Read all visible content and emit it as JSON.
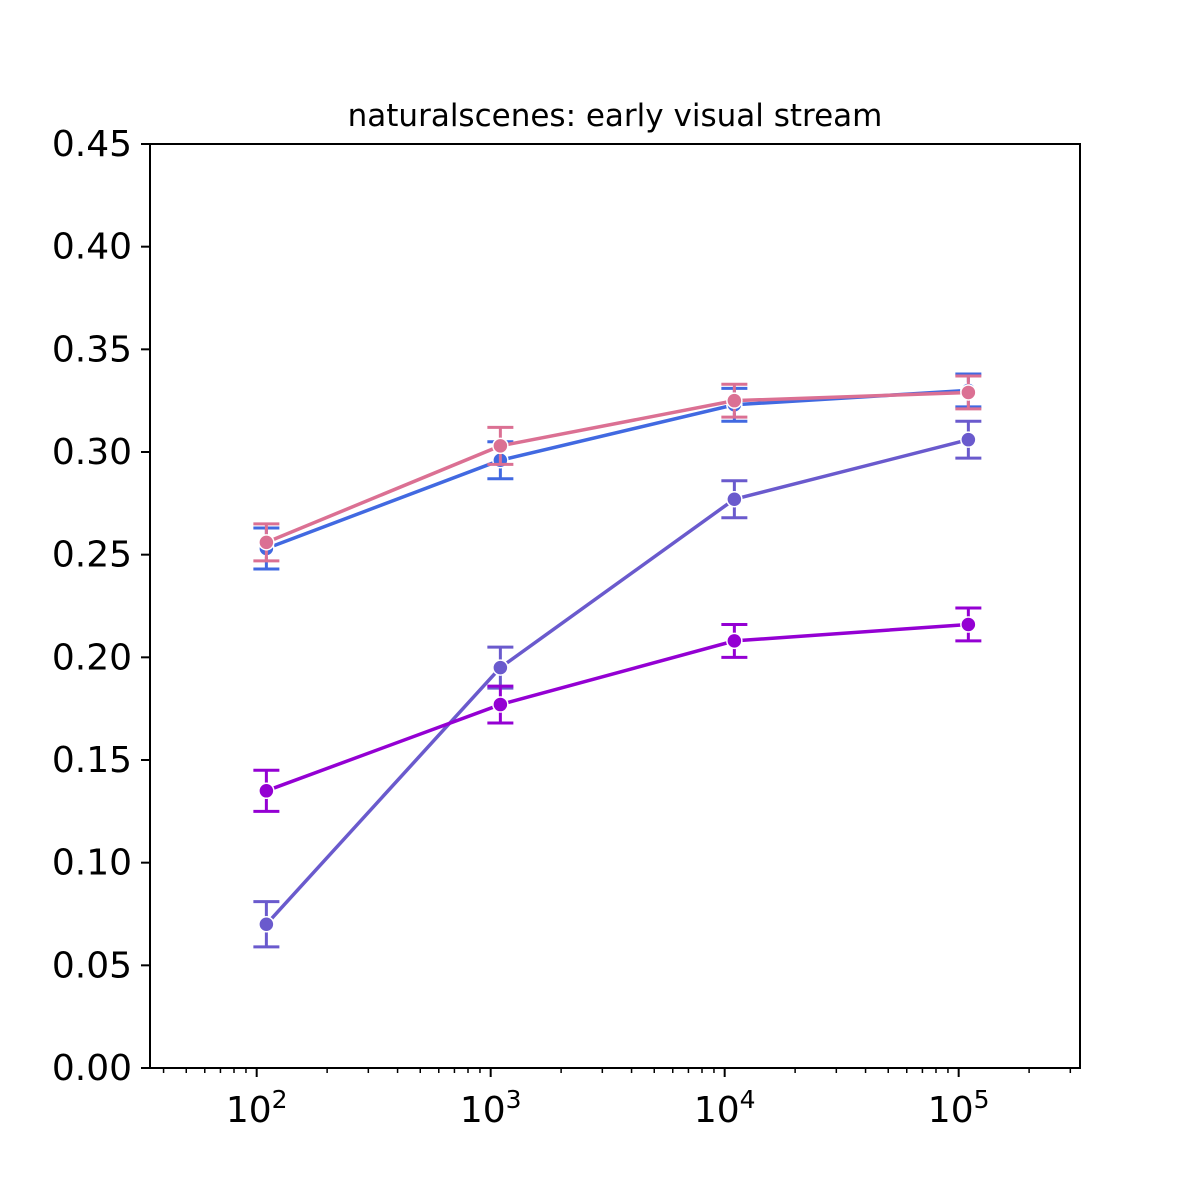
{
  "chart_data": {
    "type": "line",
    "title": "naturalscenes: early visual stream",
    "xlabel": "",
    "ylabel": "",
    "xscale": "log",
    "xlim": [
      35,
      330000
    ],
    "ylim": [
      0.0,
      0.45
    ],
    "grid": false,
    "legend": "none",
    "x_ticks": [
      {
        "value": 100,
        "base": "10",
        "exp": "2"
      },
      {
        "value": 1000,
        "base": "10",
        "exp": "3"
      },
      {
        "value": 10000,
        "base": "10",
        "exp": "4"
      },
      {
        "value": 100000,
        "base": "10",
        "exp": "5"
      }
    ],
    "y_ticks": [
      {
        "value": 0.0,
        "label": "0.00"
      },
      {
        "value": 0.05,
        "label": "0.05"
      },
      {
        "value": 0.1,
        "label": "0.10"
      },
      {
        "value": 0.15,
        "label": "0.15"
      },
      {
        "value": 0.2,
        "label": "0.20"
      },
      {
        "value": 0.25,
        "label": "0.25"
      },
      {
        "value": 0.3,
        "label": "0.30"
      },
      {
        "value": 0.35,
        "label": "0.35"
      },
      {
        "value": 0.4,
        "label": "0.40"
      },
      {
        "value": 0.45,
        "label": "0.45"
      }
    ],
    "series": [
      {
        "color": "#4169e1",
        "x": [
          110,
          1100,
          11000,
          110000
        ],
        "y": [
          0.253,
          0.296,
          0.323,
          0.33
        ],
        "err": [
          0.01,
          0.009,
          0.008,
          0.008
        ]
      },
      {
        "color": "#db7093",
        "x": [
          110,
          1100,
          11000,
          110000
        ],
        "y": [
          0.256,
          0.303,
          0.325,
          0.329
        ],
        "err": [
          0.009,
          0.009,
          0.008,
          0.008
        ]
      },
      {
        "color": "#6a5acd",
        "x": [
          110,
          1100,
          11000,
          110000
        ],
        "y": [
          0.07,
          0.195,
          0.277,
          0.306
        ],
        "err": [
          0.011,
          0.01,
          0.009,
          0.009
        ]
      },
      {
        "color": "#9400d3",
        "x": [
          110,
          1100,
          11000,
          110000
        ],
        "y": [
          0.135,
          0.177,
          0.208,
          0.216
        ],
        "err": [
          0.01,
          0.009,
          0.008,
          0.008
        ]
      }
    ]
  }
}
